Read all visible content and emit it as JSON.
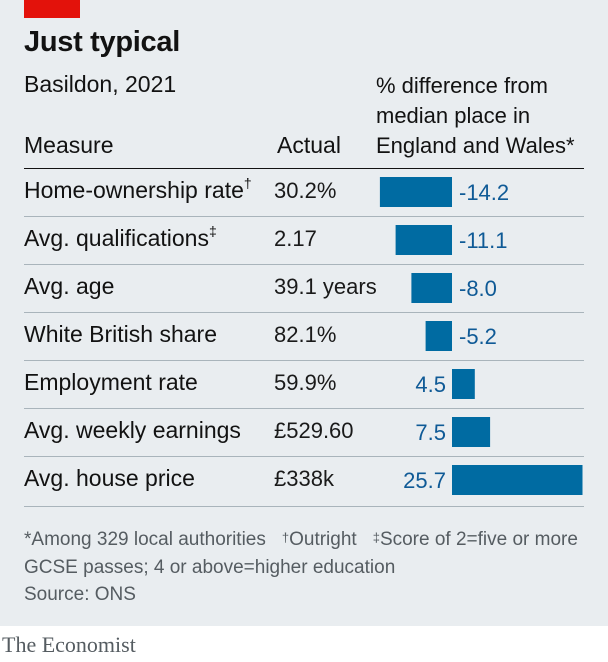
{
  "title": "Just typical",
  "subtitle": "Basildon, 2021",
  "columns": {
    "measure": "Measure",
    "actual": "Actual",
    "difference": "% difference from median place in England and Wales*"
  },
  "chart_data": {
    "type": "bar",
    "orientation": "horizontal",
    "categories": [
      "Home-ownership rate",
      "Avg. qualifications",
      "Avg. age",
      "White British share",
      "Employment rate",
      "Avg. weekly earnings",
      "Avg. house price"
    ],
    "category_marks": [
      "†",
      "‡",
      "",
      "",
      "",
      "",
      ""
    ],
    "actual": [
      "30.2%",
      "2.17",
      "39.1 years",
      "82.1%",
      "59.9%",
      "£529.60",
      "£338k"
    ],
    "values": [
      -14.2,
      -11.1,
      -8.0,
      -5.2,
      4.5,
      7.5,
      25.7
    ],
    "value_labels": [
      "-14.2",
      "-11.1",
      "-8.0",
      "-5.2",
      "4.5",
      "7.5",
      "25.7"
    ],
    "xlim": [
      -15,
      26
    ],
    "bar_color": "#006ba2",
    "label_color": "#0f5a96"
  },
  "footnotes": {
    "note1": "*Among 329 local authorities",
    "mark2": "†",
    "note2": "Outright",
    "mark3": "‡",
    "note3": "Score of 2=five or more GCSE passes; 4 or above=higher education"
  },
  "source": "Source: ONS",
  "brand": "The Economist",
  "colors": {
    "panel": "#e9edf0",
    "accent_red": "#e3120b"
  }
}
